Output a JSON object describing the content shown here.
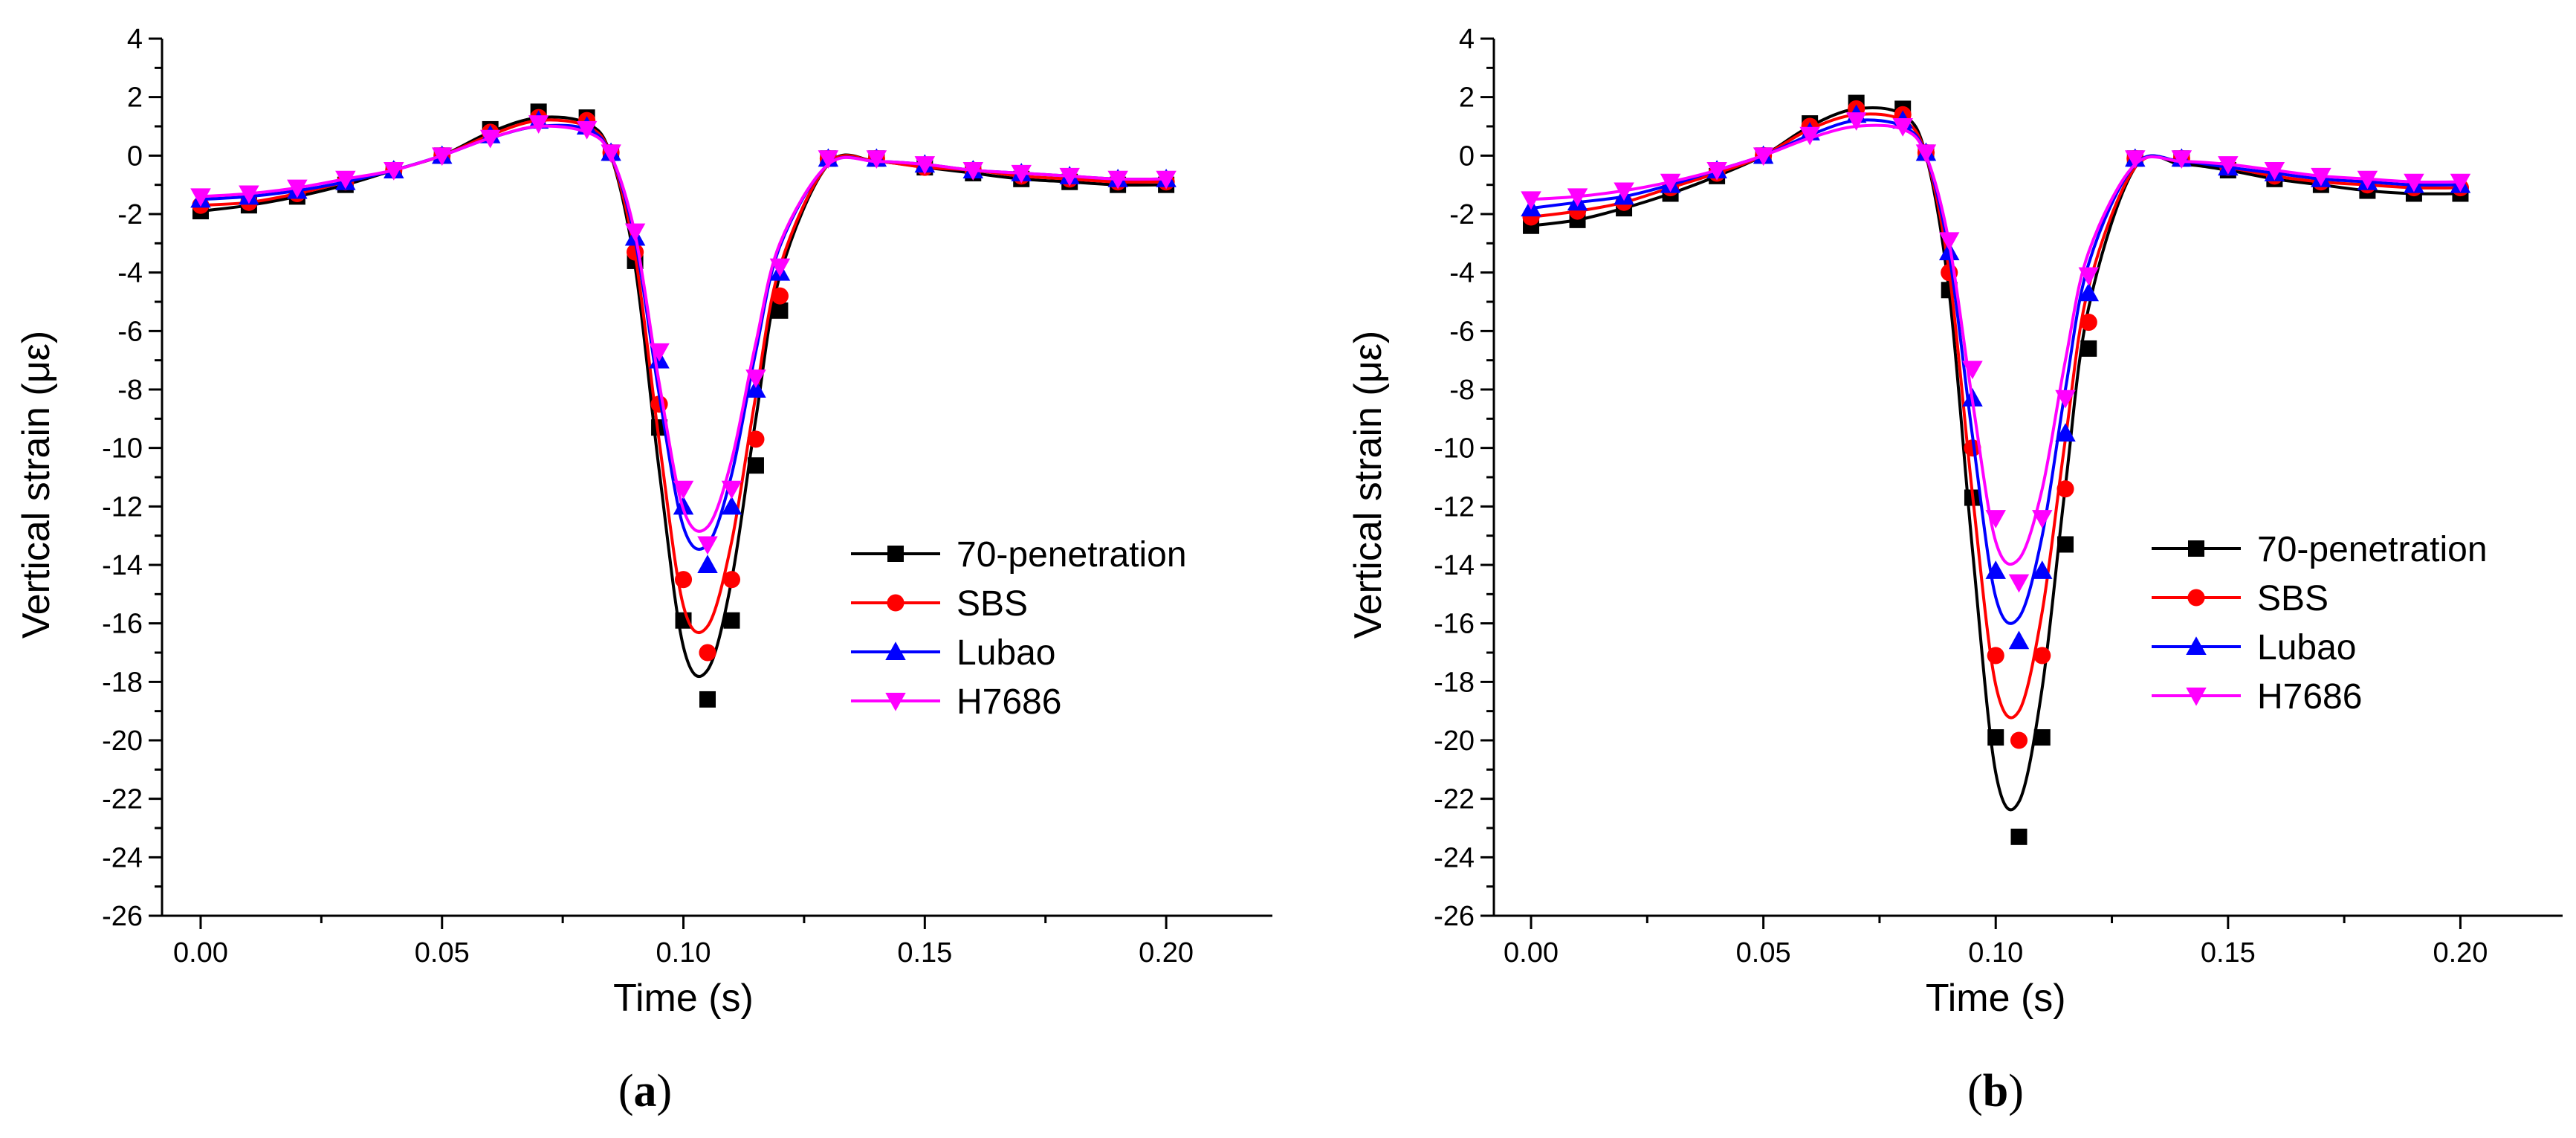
{
  "chart_data": [
    {
      "type": "line",
      "panel_label": "(a)",
      "panel_letter": "a",
      "xlabel": "Time (s)",
      "ylabel": "Vertical strain (με)",
      "xlim": [
        -0.008,
        0.222
      ],
      "ylim": [
        -26,
        4
      ],
      "xticks": [
        0.0,
        0.05,
        0.1,
        0.15,
        0.2
      ],
      "xtick_labels": [
        "0.00",
        "0.05",
        "0.10",
        "0.15",
        "0.20"
      ],
      "yticks": [
        4,
        2,
        0,
        -2,
        -4,
        -6,
        -8,
        -10,
        -12,
        -14,
        -16,
        -18,
        -20,
        -22,
        -24,
        -26
      ],
      "ytick_labels": [
        "4",
        "2",
        "0",
        "-2",
        "-4",
        "-6",
        "-8",
        "-10",
        "-12",
        "-14",
        "-16",
        "-18",
        "-20",
        "-22",
        "-24",
        "-26"
      ],
      "legend_position": "center-right",
      "x": [
        0.0,
        0.01,
        0.02,
        0.03,
        0.04,
        0.05,
        0.06,
        0.07,
        0.08,
        0.085,
        0.09,
        0.095,
        0.1,
        0.105,
        0.11,
        0.115,
        0.12,
        0.13,
        0.14,
        0.15,
        0.16,
        0.17,
        0.18,
        0.19,
        0.2
      ],
      "series": [
        {
          "name": "70-penetration",
          "color": "#000000",
          "marker": "square",
          "values": [
            -1.9,
            -1.7,
            -1.4,
            -1.0,
            -0.5,
            0.0,
            0.9,
            1.5,
            1.3,
            0.1,
            -3.6,
            -9.3,
            -15.9,
            -18.6,
            -15.9,
            -10.6,
            -5.3,
            -0.1,
            -0.1,
            -0.4,
            -0.6,
            -0.8,
            -0.9,
            -1.0,
            -1.0
          ],
          "fit_values": [
            -1.9,
            -1.7,
            -1.4,
            -1.0,
            -0.5,
            0.0,
            0.8,
            1.3,
            1.1,
            0.0,
            -3.8,
            -10.8,
            -16.8,
            -17.6,
            -14.5,
            -9.0,
            -4.1,
            -0.3,
            -0.2,
            -0.4,
            -0.6,
            -0.8,
            -0.9,
            -1.0,
            -1.0
          ]
        },
        {
          "name": "SBS",
          "color": "#ff0000",
          "marker": "circle",
          "values": [
            -1.7,
            -1.6,
            -1.3,
            -0.9,
            -0.5,
            0.0,
            0.8,
            1.3,
            1.2,
            0.1,
            -3.3,
            -8.5,
            -14.5,
            -17.0,
            -14.5,
            -9.7,
            -4.8,
            -0.1,
            -0.1,
            -0.4,
            -0.5,
            -0.7,
            -0.8,
            -0.9,
            -0.9
          ],
          "fit_values": [
            -1.7,
            -1.6,
            -1.3,
            -0.9,
            -0.5,
            0.0,
            0.7,
            1.2,
            1.0,
            0.0,
            -3.4,
            -9.8,
            -15.4,
            -16.1,
            -13.2,
            -8.2,
            -3.8,
            -0.3,
            -0.2,
            -0.4,
            -0.5,
            -0.7,
            -0.8,
            -0.9,
            -0.9
          ]
        },
        {
          "name": "Lubao",
          "color": "#0000ff",
          "marker": "triangle-up",
          "values": [
            -1.5,
            -1.4,
            -1.2,
            -0.9,
            -0.5,
            0.0,
            0.7,
            1.2,
            1.0,
            0.1,
            -2.8,
            -7.0,
            -12.0,
            -14.0,
            -12.0,
            -8.0,
            -4.0,
            -0.1,
            -0.1,
            -0.3,
            -0.5,
            -0.6,
            -0.7,
            -0.8,
            -0.8
          ],
          "fit_values": [
            -1.5,
            -1.4,
            -1.2,
            -0.9,
            -0.5,
            0.0,
            0.6,
            1.0,
            0.9,
            0.0,
            -2.9,
            -8.2,
            -12.7,
            -13.3,
            -10.9,
            -6.7,
            -3.1,
            -0.3,
            -0.2,
            -0.3,
            -0.5,
            -0.6,
            -0.7,
            -0.8,
            -0.8
          ]
        },
        {
          "name": "H7686",
          "color": "#ff00ff",
          "marker": "triangle-down",
          "values": [
            -1.4,
            -1.3,
            -1.1,
            -0.8,
            -0.5,
            0.0,
            0.6,
            1.1,
            0.9,
            0.1,
            -2.6,
            -6.7,
            -11.4,
            -13.3,
            -11.4,
            -7.6,
            -3.8,
            -0.1,
            -0.1,
            -0.3,
            -0.5,
            -0.6,
            -0.7,
            -0.8,
            -0.8
          ],
          "fit_values": [
            -1.4,
            -1.3,
            -1.1,
            -0.8,
            -0.5,
            0.0,
            0.6,
            1.0,
            0.8,
            0.0,
            -2.7,
            -7.8,
            -12.1,
            -12.7,
            -10.4,
            -6.4,
            -3.0,
            -0.3,
            -0.2,
            -0.3,
            -0.5,
            -0.6,
            -0.7,
            -0.8,
            -0.8
          ]
        }
      ]
    },
    {
      "type": "line",
      "panel_label": "(b)",
      "panel_letter": "b",
      "xlabel": "Time (s)",
      "ylabel": "Vertical strain (με)",
      "xlim": [
        -0.008,
        0.222
      ],
      "ylim": [
        -26,
        4
      ],
      "xticks": [
        0.0,
        0.05,
        0.1,
        0.15,
        0.2
      ],
      "xtick_labels": [
        "0.00",
        "0.05",
        "0.10",
        "0.15",
        "0.20"
      ],
      "yticks": [
        4,
        2,
        0,
        -2,
        -4,
        -6,
        -8,
        -10,
        -12,
        -14,
        -16,
        -18,
        -20,
        -22,
        -24,
        -26
      ],
      "ytick_labels": [
        "4",
        "2",
        "0",
        "-2",
        "-4",
        "-6",
        "-8",
        "-10",
        "-12",
        "-14",
        "-16",
        "-18",
        "-20",
        "-22",
        "-24",
        "-26"
      ],
      "legend_position": "center-right",
      "x": [
        0.0,
        0.01,
        0.02,
        0.03,
        0.04,
        0.05,
        0.06,
        0.07,
        0.08,
        0.085,
        0.09,
        0.095,
        0.1,
        0.105,
        0.11,
        0.115,
        0.12,
        0.13,
        0.14,
        0.15,
        0.16,
        0.17,
        0.18,
        0.19,
        0.2
      ],
      "series": [
        {
          "name": "70-penetration",
          "color": "#000000",
          "marker": "square",
          "values": [
            -2.4,
            -2.2,
            -1.8,
            -1.3,
            -0.7,
            0.0,
            1.1,
            1.8,
            1.6,
            0.1,
            -4.6,
            -11.7,
            -19.9,
            -23.3,
            -19.9,
            -13.3,
            -6.6,
            -0.1,
            -0.1,
            -0.5,
            -0.8,
            -1.0,
            -1.2,
            -1.3,
            -1.3
          ],
          "fit_values": [
            -2.4,
            -2.2,
            -1.8,
            -1.3,
            -0.7,
            0.0,
            1.0,
            1.6,
            1.4,
            0.0,
            -4.7,
            -13.5,
            -21.1,
            -22.1,
            -18.2,
            -11.3,
            -5.2,
            -0.4,
            -0.3,
            -0.5,
            -0.8,
            -1.0,
            -1.2,
            -1.3,
            -1.3
          ]
        },
        {
          "name": "SBS",
          "color": "#ff0000",
          "marker": "circle",
          "values": [
            -2.1,
            -1.9,
            -1.6,
            -1.1,
            -0.6,
            0.0,
            1.0,
            1.6,
            1.4,
            0.1,
            -4.0,
            -10.0,
            -17.1,
            -20.0,
            -17.1,
            -11.4,
            -5.7,
            -0.1,
            -0.1,
            -0.4,
            -0.7,
            -0.9,
            -1.0,
            -1.1,
            -1.1
          ],
          "fit_values": [
            -2.1,
            -1.9,
            -1.6,
            -1.1,
            -0.6,
            0.0,
            0.9,
            1.4,
            1.2,
            0.0,
            -4.0,
            -11.6,
            -18.1,
            -19.0,
            -15.6,
            -9.7,
            -4.5,
            -0.4,
            -0.2,
            -0.4,
            -0.7,
            -0.9,
            -1.0,
            -1.1,
            -1.1
          ]
        },
        {
          "name": "Lubao",
          "color": "#0000ff",
          "marker": "triangle-up",
          "values": [
            -1.8,
            -1.6,
            -1.4,
            -1.0,
            -0.5,
            0.0,
            0.8,
            1.4,
            1.2,
            0.1,
            -3.3,
            -8.3,
            -14.2,
            -16.6,
            -14.2,
            -9.5,
            -4.7,
            -0.1,
            -0.1,
            -0.4,
            -0.6,
            -0.8,
            -0.9,
            -1.0,
            -1.0
          ],
          "fit_values": [
            -1.8,
            -1.6,
            -1.4,
            -1.0,
            -0.5,
            0.0,
            0.7,
            1.2,
            1.0,
            0.0,
            -3.4,
            -9.6,
            -15.1,
            -15.8,
            -13.0,
            -8.0,
            -3.7,
            -0.3,
            -0.2,
            -0.4,
            -0.6,
            -0.8,
            -0.9,
            -1.0,
            -1.0
          ]
        },
        {
          "name": "H7686",
          "color": "#ff00ff",
          "marker": "triangle-down",
          "values": [
            -1.5,
            -1.4,
            -1.2,
            -0.9,
            -0.5,
            0.0,
            0.7,
            1.2,
            1.0,
            0.1,
            -2.9,
            -7.3,
            -12.4,
            -14.6,
            -12.4,
            -8.3,
            -4.1,
            -0.1,
            -0.1,
            -0.3,
            -0.5,
            -0.7,
            -0.8,
            -0.9,
            -0.9
          ],
          "fit_values": [
            -1.5,
            -1.4,
            -1.2,
            -0.9,
            -0.5,
            0.0,
            0.6,
            1.0,
            0.9,
            0.0,
            -3.0,
            -8.4,
            -13.2,
            -13.8,
            -11.4,
            -7.0,
            -3.3,
            -0.3,
            -0.2,
            -0.3,
            -0.5,
            -0.7,
            -0.8,
            -0.9,
            -0.9
          ]
        }
      ]
    }
  ]
}
